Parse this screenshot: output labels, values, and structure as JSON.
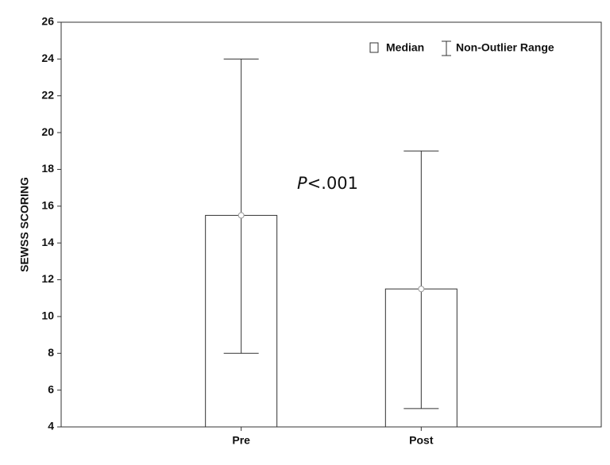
{
  "chart_data": {
    "type": "box",
    "y_label": "SEWSS SCORING",
    "categories": [
      "Pre",
      "Post"
    ],
    "median": [
      15.5,
      11.5
    ],
    "min": [
      8,
      5
    ],
    "max": [
      24,
      19
    ],
    "legend_labels": [
      "Median",
      "Non-Outlier Range"
    ],
    "annotation": "P<.001",
    "ylim": [
      4,
      26
    ],
    "yticks": [
      4,
      6,
      8,
      10,
      12,
      14,
      16,
      18,
      20,
      22,
      24,
      26
    ],
    "color": "#ffffff"
  }
}
